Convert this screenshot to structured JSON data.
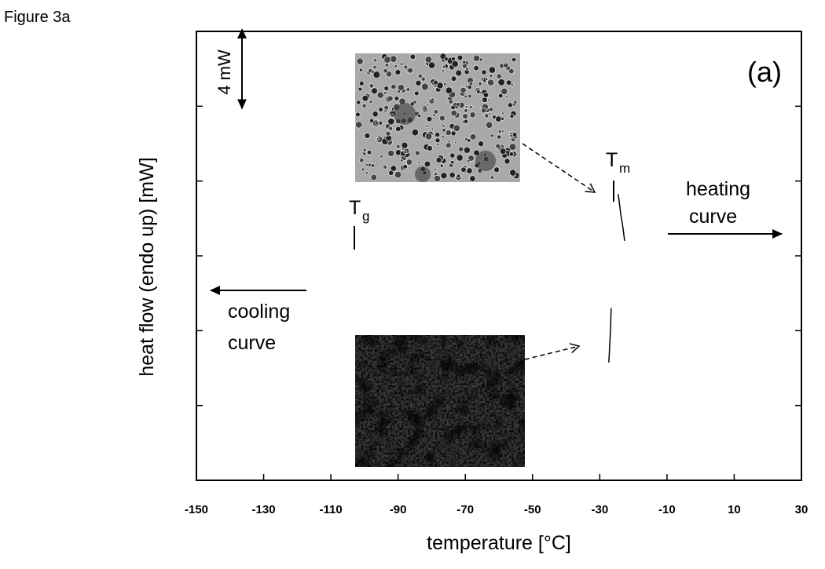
{
  "figure_label": "Figure 3a",
  "chart_data": {
    "type": "line",
    "panel_label": "(a)",
    "xlabel": "temperature [°C]",
    "ylabel": "heat flow (endo up) [mW]",
    "xlim": [
      -150,
      30
    ],
    "xticks": [
      -150,
      -130,
      -110,
      -90,
      -70,
      -50,
      -30,
      -10,
      10,
      30
    ],
    "ylim": [
      0,
      24
    ],
    "yticks": [
      4,
      8,
      12,
      16,
      20
    ],
    "scale_bar": {
      "label": "4 mW",
      "value": 4
    },
    "tg": {
      "text": "T",
      "sub": "g"
    },
    "tm": {
      "text": "T",
      "sub": "m"
    },
    "heating_label": [
      "heating",
      "curve"
    ],
    "cooling_label": [
      "cooling",
      "curve"
    ],
    "series": [
      {
        "color": "#000000",
        "x": [
          -24.5,
          -23.8,
          -23.1,
          -22.6
        ],
        "values": [
          15.3,
          14.3,
          13.5,
          12.8
        ]
      },
      {
        "color": "#000000",
        "x": [
          -26.6,
          -26.8,
          -27.1,
          -27.3
        ],
        "values": [
          9.2,
          8.1,
          7.0,
          6.3
        ]
      }
    ]
  }
}
